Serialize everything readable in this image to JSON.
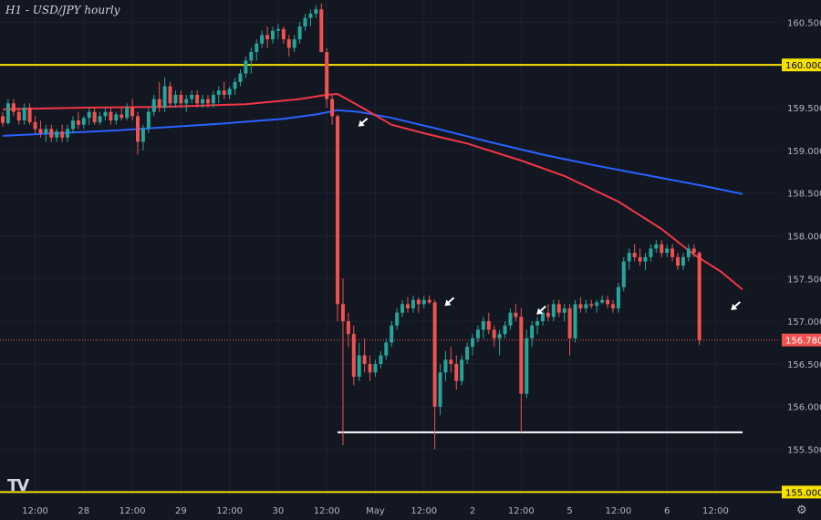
{
  "header": {
    "title": "H1 - USD/JPY hourly"
  },
  "logo": {
    "text": "TV"
  },
  "colors": {
    "background": "#131722",
    "grid": "#1e2230",
    "axis_text": "#b2b5be",
    "up": "#26a69a",
    "down": "#ef5350",
    "ma_red": "#f23645",
    "ma_blue": "#2962ff",
    "hline_yellow": "#f5e100",
    "support_white": "#ffffff",
    "arrow": "#ffffff"
  },
  "chart_data": {
    "type": "candlestick",
    "title": "H1 - USD/JPY hourly",
    "y_axis": {
      "ylim": [
        154.94,
        160.76
      ],
      "ticks": [
        "160.500",
        "160.000",
        "159.500",
        "159.000",
        "158.500",
        "158.000",
        "157.500",
        "157.000",
        "156.500",
        "156.000",
        "155.500",
        "155.000"
      ]
    },
    "x_axis": {
      "tick_labels": [
        "12:00",
        "28",
        "12:00",
        "29",
        "12:00",
        "30",
        "12:00",
        "May",
        "12:00",
        "2",
        "12:00",
        "5",
        "12:00",
        "6",
        "12:00"
      ],
      "tick_index": [
        6,
        15,
        24,
        33,
        42,
        51,
        60,
        69,
        78,
        87,
        96,
        105,
        114,
        123,
        132
      ]
    },
    "grid": true,
    "current_price": {
      "value": 156.78,
      "label": "156.780"
    },
    "horizontal_levels": [
      {
        "value": 160.0,
        "label": "160.000",
        "color": "#f5e100"
      },
      {
        "value": 155.0,
        "label": "155.000",
        "color": "#f5e100"
      },
      {
        "value": 155.7,
        "label": "",
        "color": "#ffffff",
        "from_index": 62,
        "to_index": 137
      }
    ],
    "arrows": [
      {
        "index": 65,
        "price": 159.3
      },
      {
        "index": 81,
        "price": 157.2
      },
      {
        "index": 98,
        "price": 157.1
      },
      {
        "index": 134,
        "price": 157.15
      }
    ],
    "candles": [
      [
        159.4,
        159.45,
        159.28,
        159.32
      ],
      [
        159.32,
        159.6,
        159.3,
        159.55
      ],
      [
        159.55,
        159.6,
        159.4,
        159.45
      ],
      [
        159.45,
        159.5,
        159.3,
        159.35
      ],
      [
        159.35,
        159.55,
        159.3,
        159.5
      ],
      [
        159.5,
        159.55,
        159.3,
        159.33
      ],
      [
        159.33,
        159.4,
        159.2,
        159.25
      ],
      [
        159.25,
        159.35,
        159.15,
        159.2
      ],
      [
        159.2,
        159.3,
        159.1,
        159.25
      ],
      [
        159.25,
        159.3,
        159.1,
        159.15
      ],
      [
        159.15,
        159.25,
        159.1,
        159.22
      ],
      [
        159.22,
        159.3,
        159.1,
        159.15
      ],
      [
        159.15,
        159.3,
        159.1,
        159.25
      ],
      [
        159.25,
        159.4,
        159.2,
        159.35
      ],
      [
        159.35,
        159.45,
        159.25,
        159.3
      ],
      [
        159.3,
        159.4,
        159.25,
        159.38
      ],
      [
        159.38,
        159.5,
        159.3,
        159.45
      ],
      [
        159.45,
        159.5,
        159.3,
        159.33
      ],
      [
        159.33,
        159.45,
        159.3,
        159.4
      ],
      [
        159.4,
        159.5,
        159.35,
        159.45
      ],
      [
        159.45,
        159.5,
        159.3,
        159.35
      ],
      [
        159.35,
        159.45,
        159.3,
        159.42
      ],
      [
        159.42,
        159.5,
        159.35,
        159.38
      ],
      [
        159.38,
        159.55,
        159.35,
        159.5
      ],
      [
        159.5,
        159.6,
        159.35,
        159.4
      ],
      [
        159.4,
        159.45,
        158.95,
        159.1
      ],
      [
        159.1,
        159.3,
        159.0,
        159.25
      ],
      [
        159.25,
        159.5,
        159.2,
        159.45
      ],
      [
        159.45,
        159.65,
        159.4,
        159.6
      ],
      [
        159.6,
        159.8,
        159.45,
        159.5
      ],
      [
        159.5,
        159.85,
        159.45,
        159.75
      ],
      [
        159.75,
        159.8,
        159.5,
        159.55
      ],
      [
        159.55,
        159.7,
        159.5,
        159.65
      ],
      [
        159.65,
        159.7,
        159.5,
        159.55
      ],
      [
        159.55,
        159.65,
        159.45,
        159.6
      ],
      [
        159.6,
        159.7,
        159.55,
        159.65
      ],
      [
        159.65,
        159.7,
        159.5,
        159.55
      ],
      [
        159.55,
        159.65,
        159.5,
        159.6
      ],
      [
        159.6,
        159.65,
        159.5,
        159.55
      ],
      [
        159.55,
        159.7,
        159.5,
        159.65
      ],
      [
        159.65,
        159.75,
        159.55,
        159.7
      ],
      [
        159.7,
        159.8,
        159.6,
        159.65
      ],
      [
        159.65,
        159.75,
        159.6,
        159.72
      ],
      [
        159.72,
        159.85,
        159.65,
        159.8
      ],
      [
        159.8,
        159.95,
        159.75,
        159.9
      ],
      [
        159.9,
        160.1,
        159.85,
        160.05
      ],
      [
        160.05,
        160.2,
        159.9,
        160.15
      ],
      [
        160.15,
        160.3,
        160.05,
        160.25
      ],
      [
        160.25,
        160.4,
        160.2,
        160.35
      ],
      [
        160.35,
        160.45,
        160.2,
        160.3
      ],
      [
        160.3,
        160.45,
        160.25,
        160.4
      ],
      [
        160.4,
        160.48,
        160.3,
        160.42
      ],
      [
        160.42,
        160.45,
        160.25,
        160.3
      ],
      [
        160.3,
        160.35,
        160.1,
        160.2
      ],
      [
        160.2,
        160.35,
        160.15,
        160.3
      ],
      [
        160.3,
        160.5,
        160.25,
        160.45
      ],
      [
        160.45,
        160.6,
        160.4,
        160.55
      ],
      [
        160.55,
        160.65,
        160.45,
        160.6
      ],
      [
        160.6,
        160.7,
        160.55,
        160.65
      ],
      [
        160.65,
        160.72,
        160.2,
        160.15
      ],
      [
        160.15,
        160.2,
        159.5,
        159.6
      ],
      [
        159.6,
        159.65,
        159.3,
        159.4
      ],
      [
        159.4,
        159.42,
        157.0,
        157.2
      ],
      [
        157.2,
        157.5,
        155.55,
        157.0
      ],
      [
        157.0,
        157.1,
        156.7,
        156.85
      ],
      [
        156.85,
        156.95,
        156.25,
        156.35
      ],
      [
        156.35,
        156.75,
        156.3,
        156.6
      ],
      [
        156.6,
        156.8,
        156.4,
        156.5
      ],
      [
        156.5,
        156.6,
        156.3,
        156.4
      ],
      [
        156.4,
        156.55,
        156.35,
        156.5
      ],
      [
        156.5,
        156.65,
        156.45,
        156.6
      ],
      [
        156.6,
        156.8,
        156.55,
        156.75
      ],
      [
        156.75,
        157.0,
        156.7,
        156.95
      ],
      [
        156.95,
        157.15,
        156.9,
        157.1
      ],
      [
        157.1,
        157.25,
        157.05,
        157.2
      ],
      [
        157.2,
        157.28,
        157.1,
        157.15
      ],
      [
        157.15,
        157.3,
        157.1,
        157.25
      ],
      [
        157.25,
        157.28,
        157.1,
        157.2
      ],
      [
        157.2,
        157.3,
        157.15,
        157.25
      ],
      [
        157.25,
        157.3,
        157.2,
        157.22
      ],
      [
        157.22,
        157.25,
        155.5,
        156.0
      ],
      [
        156.0,
        156.5,
        155.9,
        156.4
      ],
      [
        156.4,
        156.65,
        156.3,
        156.55
      ],
      [
        156.55,
        156.7,
        156.4,
        156.5
      ],
      [
        156.5,
        156.6,
        156.2,
        156.3
      ],
      [
        156.3,
        156.6,
        156.25,
        156.55
      ],
      [
        156.55,
        156.75,
        156.5,
        156.7
      ],
      [
        156.7,
        156.85,
        156.6,
        156.8
      ],
      [
        156.8,
        156.95,
        156.75,
        156.9
      ],
      [
        156.9,
        157.05,
        156.8,
        157.0
      ],
      [
        157.0,
        157.1,
        156.85,
        156.9
      ],
      [
        156.9,
        156.95,
        156.7,
        156.8
      ],
      [
        156.8,
        156.9,
        156.6,
        156.85
      ],
      [
        156.85,
        157.0,
        156.8,
        156.95
      ],
      [
        156.95,
        157.15,
        156.9,
        157.1
      ],
      [
        157.1,
        157.2,
        157.0,
        157.05
      ],
      [
        157.05,
        157.15,
        155.7,
        156.15
      ],
      [
        156.15,
        156.9,
        156.1,
        156.8
      ],
      [
        156.8,
        157.0,
        156.7,
        156.95
      ],
      [
        156.95,
        157.05,
        156.85,
        157.0
      ],
      [
        157.0,
        157.15,
        156.95,
        157.1
      ],
      [
        157.1,
        157.2,
        157.0,
        157.05
      ],
      [
        157.05,
        157.25,
        157.0,
        157.2
      ],
      [
        157.2,
        157.25,
        157.05,
        157.1
      ],
      [
        157.1,
        157.2,
        157.0,
        157.15
      ],
      [
        157.15,
        157.2,
        156.6,
        156.8
      ],
      [
        156.8,
        157.25,
        156.75,
        157.2
      ],
      [
        157.2,
        157.28,
        157.1,
        157.15
      ],
      [
        157.15,
        157.25,
        157.1,
        157.2
      ],
      [
        157.2,
        157.25,
        157.15,
        157.18
      ],
      [
        157.18,
        157.25,
        157.1,
        157.22
      ],
      [
        157.22,
        157.3,
        157.2,
        157.25
      ],
      [
        157.25,
        157.3,
        157.15,
        157.2
      ],
      [
        157.2,
        157.25,
        157.1,
        157.15
      ],
      [
        157.15,
        157.45,
        157.1,
        157.4
      ],
      [
        157.4,
        157.75,
        157.35,
        157.7
      ],
      [
        157.7,
        157.85,
        157.6,
        157.8
      ],
      [
        157.8,
        157.9,
        157.7,
        157.75
      ],
      [
        157.75,
        157.85,
        157.65,
        157.7
      ],
      [
        157.7,
        157.8,
        157.6,
        157.75
      ],
      [
        157.75,
        157.9,
        157.7,
        157.85
      ],
      [
        157.85,
        157.95,
        157.8,
        157.9
      ],
      [
        157.9,
        157.95,
        157.75,
        157.8
      ],
      [
        157.8,
        157.9,
        157.75,
        157.85
      ],
      [
        157.85,
        157.9,
        157.7,
        157.75
      ],
      [
        157.75,
        157.8,
        157.6,
        157.65
      ],
      [
        157.65,
        157.8,
        157.6,
        157.75
      ],
      [
        157.75,
        157.9,
        157.7,
        157.85
      ],
      [
        157.85,
        157.9,
        157.75,
        157.8
      ],
      [
        157.8,
        157.82,
        156.72,
        156.78
      ]
    ],
    "ma_red": [
      [
        0,
        159.48
      ],
      [
        15,
        159.5
      ],
      [
        30,
        159.51
      ],
      [
        45,
        159.54
      ],
      [
        55,
        159.6
      ],
      [
        60,
        159.65
      ],
      [
        62,
        159.66
      ],
      [
        66,
        159.52
      ],
      [
        72,
        159.3
      ],
      [
        78,
        159.2
      ],
      [
        86,
        159.08
      ],
      [
        96,
        158.88
      ],
      [
        104,
        158.7
      ],
      [
        114,
        158.4
      ],
      [
        122,
        158.08
      ],
      [
        128,
        157.78
      ],
      [
        133,
        157.58
      ],
      [
        137,
        157.37
      ]
    ],
    "ma_blue": [
      [
        0,
        159.17
      ],
      [
        20,
        159.23
      ],
      [
        40,
        159.31
      ],
      [
        52,
        159.37
      ],
      [
        58,
        159.42
      ],
      [
        62,
        159.47
      ],
      [
        66,
        159.45
      ],
      [
        72,
        159.38
      ],
      [
        80,
        159.26
      ],
      [
        90,
        159.1
      ],
      [
        100,
        158.95
      ],
      [
        110,
        158.82
      ],
      [
        120,
        158.7
      ],
      [
        130,
        158.58
      ],
      [
        137,
        158.49
      ]
    ]
  }
}
